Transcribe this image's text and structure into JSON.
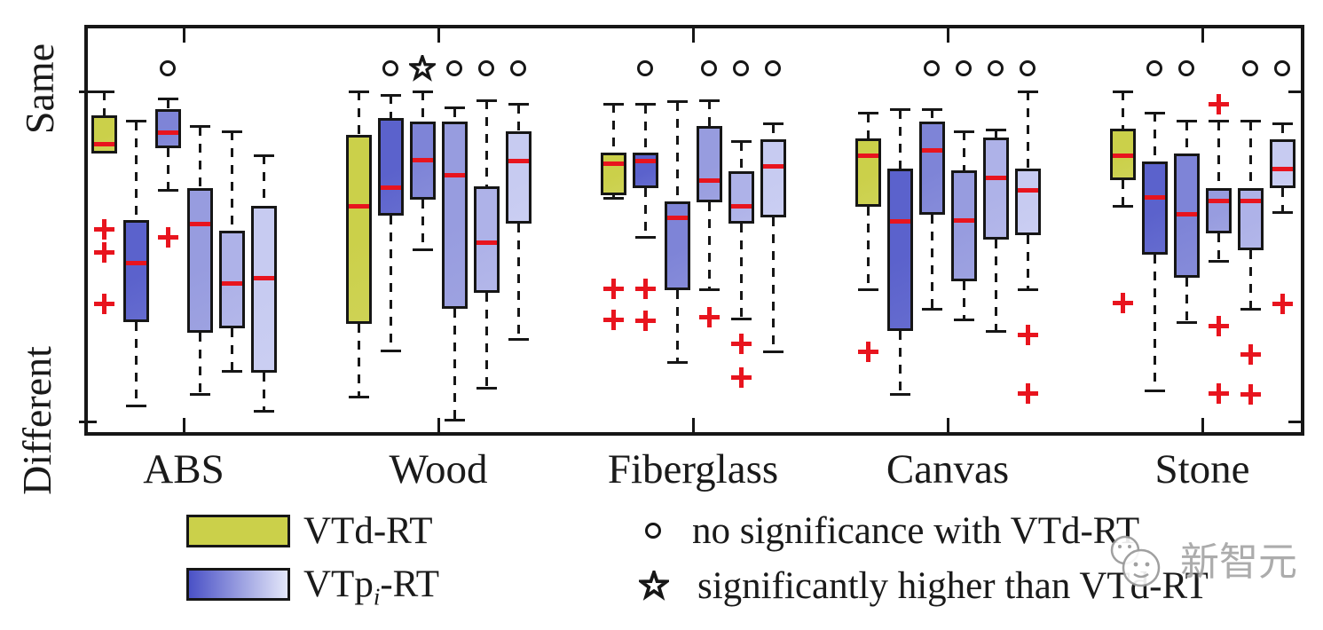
{
  "chart_data": {
    "type": "boxplot",
    "title": "",
    "axis": {
      "top_label": "Same",
      "bottom_label": "Different"
    },
    "value_scale": {
      "min": 0,
      "max": 1,
      "min_label": "Different",
      "max_label": "Same"
    },
    "categories": [
      "ABS",
      "Wood",
      "Fiberglass",
      "Canvas",
      "Stone"
    ],
    "series_legend": [
      "VTd-RT",
      "VTpi-RT"
    ],
    "groups": [
      {
        "name": "ABS",
        "boxes": [
          {
            "series": "VTd-RT",
            "q3": 0.927,
            "median": 0.839,
            "q1": 0.812,
            "whisker_high": 1.0,
            "whisker_low": 0.812,
            "outliers": [
              0.583,
              0.513,
              0.355
            ],
            "significance": null
          },
          {
            "series": "VTp-RT",
            "variant": 1,
            "q3": 0.61,
            "median": 0.481,
            "q1": 0.301,
            "whisker_high": 0.909,
            "whisker_low": 0.048,
            "outliers": [],
            "significance": null
          },
          {
            "series": "VTp-RT",
            "variant": 2,
            "q3": 0.946,
            "median": 0.874,
            "q1": 0.828,
            "whisker_high": 0.976,
            "whisker_low": 0.699,
            "outliers": [
              0.559
            ],
            "significance": "circle"
          },
          {
            "series": "VTp-RT",
            "variant": 3,
            "q3": 0.707,
            "median": 0.597,
            "q1": 0.269,
            "whisker_high": 0.893,
            "whisker_low": 0.081,
            "outliers": [],
            "significance": null
          },
          {
            "series": "VTp-RT",
            "variant": 4,
            "q3": 0.578,
            "median": 0.417,
            "q1": 0.282,
            "whisker_high": 0.879,
            "whisker_low": 0.153,
            "outliers": [],
            "significance": null
          },
          {
            "series": "VTp-RT",
            "variant": 5,
            "q3": 0.653,
            "median": 0.435,
            "q1": 0.148,
            "whisker_high": 0.806,
            "whisker_low": 0.032,
            "outliers": [],
            "significance": null
          }
        ]
      },
      {
        "name": "Wood",
        "boxes": [
          {
            "series": "VTd-RT",
            "q3": 0.868,
            "median": 0.653,
            "q1": 0.296,
            "whisker_high": 1.0,
            "whisker_low": 0.075,
            "outliers": [],
            "significance": null
          },
          {
            "series": "VTp-RT",
            "variant": 1,
            "q3": 0.919,
            "median": 0.707,
            "q1": 0.624,
            "whisker_high": 0.989,
            "whisker_low": 0.215,
            "outliers": [],
            "significance": "circle"
          },
          {
            "series": "VTp-RT",
            "variant": 2,
            "q3": 0.909,
            "median": 0.793,
            "q1": 0.672,
            "whisker_high": 1.0,
            "whisker_low": 0.519,
            "outliers": [],
            "significance": "star"
          },
          {
            "series": "VTp-RT",
            "variant": 3,
            "q3": 0.909,
            "median": 0.747,
            "q1": 0.341,
            "whisker_high": 0.949,
            "whisker_low": 0.005,
            "outliers": [],
            "significance": "circle"
          },
          {
            "series": "VTp-RT",
            "variant": 4,
            "q3": 0.712,
            "median": 0.543,
            "q1": 0.39,
            "whisker_high": 0.973,
            "whisker_low": 0.102,
            "outliers": [],
            "significance": "circle"
          },
          {
            "series": "VTp-RT",
            "variant": 5,
            "q3": 0.879,
            "median": 0.788,
            "q1": 0.599,
            "whisker_high": 0.96,
            "whisker_low": 0.25,
            "outliers": [],
            "significance": "circle"
          }
        ]
      },
      {
        "name": "Fiberglass",
        "boxes": [
          {
            "series": "VTd-RT",
            "q3": 0.815,
            "median": 0.78,
            "q1": 0.685,
            "whisker_high": 0.962,
            "whisker_low": 0.676,
            "outliers": [
              0.403,
              0.309
            ],
            "significance": null
          },
          {
            "series": "VTp-RT",
            "variant": 1,
            "q3": 0.815,
            "median": 0.788,
            "q1": 0.707,
            "whisker_high": 0.96,
            "whisker_low": 0.559,
            "outliers": [
              0.403,
              0.304
            ],
            "significance": "circle"
          },
          {
            "series": "VTp-RT",
            "variant": 2,
            "q3": 0.667,
            "median": 0.618,
            "q1": 0.398,
            "whisker_high": 0.968,
            "whisker_low": 0.18,
            "outliers": [],
            "significance": null
          },
          {
            "series": "VTp-RT",
            "variant": 3,
            "q3": 0.895,
            "median": 0.731,
            "q1": 0.664,
            "whisker_high": 0.973,
            "whisker_low": 0.398,
            "outliers": [
              0.315
            ],
            "significance": "circle"
          },
          {
            "series": "VTp-RT",
            "variant": 4,
            "q3": 0.758,
            "median": 0.651,
            "q1": 0.599,
            "whisker_high": 0.847,
            "whisker_low": 0.31,
            "outliers": [
              0.234,
              0.134
            ],
            "significance": "circle"
          },
          {
            "series": "VTp-RT",
            "variant": 5,
            "q3": 0.855,
            "median": 0.774,
            "q1": 0.618,
            "whisker_high": 0.901,
            "whisker_low": 0.21,
            "outliers": [],
            "significance": "circle"
          }
        ]
      },
      {
        "name": "Canvas",
        "boxes": [
          {
            "series": "VTd-RT",
            "q3": 0.858,
            "median": 0.804,
            "q1": 0.651,
            "whisker_high": 0.933,
            "whisker_low": 0.398,
            "outliers": [
              0.21
            ],
            "significance": null
          },
          {
            "series": "VTp-RT",
            "variant": 1,
            "q3": 0.766,
            "median": 0.605,
            "q1": 0.274,
            "whisker_high": 0.944,
            "whisker_low": 0.081,
            "outliers": [],
            "significance": null
          },
          {
            "series": "VTp-RT",
            "variant": 2,
            "q3": 0.909,
            "median": 0.82,
            "q1": 0.626,
            "whisker_high": 0.946,
            "whisker_low": 0.341,
            "outliers": [],
            "significance": "circle"
          },
          {
            "series": "VTp-RT",
            "variant": 3,
            "q3": 0.761,
            "median": 0.61,
            "q1": 0.425,
            "whisker_high": 0.879,
            "whisker_low": 0.309,
            "outliers": [],
            "significance": "circle"
          },
          {
            "series": "VTp-RT",
            "variant": 4,
            "q3": 0.86,
            "median": 0.739,
            "q1": 0.551,
            "whisker_high": 0.882,
            "whisker_low": 0.274,
            "outliers": [],
            "significance": "circle"
          },
          {
            "series": "VTp-RT",
            "variant": 5,
            "q3": 0.766,
            "median": 0.699,
            "q1": 0.565,
            "whisker_high": 1.0,
            "whisker_low": 0.398,
            "outliers": [
              0.263,
              0.086
            ],
            "significance": "circle"
          }
        ]
      },
      {
        "name": "Stone",
        "boxes": [
          {
            "series": "VTd-RT",
            "q3": 0.887,
            "median": 0.806,
            "q1": 0.731,
            "whisker_high": 1.0,
            "whisker_low": 0.651,
            "outliers": [
              0.358
            ],
            "significance": null
          },
          {
            "series": "VTp-RT",
            "variant": 1,
            "q3": 0.788,
            "median": 0.68,
            "q1": 0.505,
            "whisker_high": 0.935,
            "whisker_low": 0.094,
            "outliers": [],
            "significance": "circle"
          },
          {
            "series": "VTp-RT",
            "variant": 2,
            "q3": 0.812,
            "median": 0.629,
            "q1": 0.435,
            "whisker_high": 0.909,
            "whisker_low": 0.301,
            "outliers": [],
            "significance": "circle"
          },
          {
            "series": "VTp-RT",
            "variant": 3,
            "q3": 0.707,
            "median": 0.667,
            "q1": 0.57,
            "whisker_high": 0.909,
            "whisker_low": 0.484,
            "outliers": [
              0.96,
              0.288,
              0.086
            ],
            "significance": null
          },
          {
            "series": "VTp-RT",
            "variant": 4,
            "q3": 0.707,
            "median": 0.667,
            "q1": 0.519,
            "whisker_high": 0.909,
            "whisker_low": 0.341,
            "outliers": [
              0.202,
              0.081
            ],
            "significance": "circle"
          },
          {
            "series": "VTp-RT",
            "variant": 5,
            "q3": 0.855,
            "median": 0.766,
            "q1": 0.707,
            "whisker_high": 0.901,
            "whisker_low": 0.632,
            "outliers": [
              0.355
            ],
            "significance": "circle"
          }
        ]
      }
    ]
  },
  "legend": {
    "vtd_label": "VTd-RT",
    "vtp_label_parts": {
      "prefix": "VTp",
      "subscript": "i",
      "suffix": "-RT"
    },
    "circle_text": "no significance with VTd-RT",
    "star_text": "significantly higher than VTd-RT"
  },
  "colors": {
    "vtd": "#cbd04a",
    "vtp_shades": [
      "#5b62cc",
      "#7e84d7",
      "#979cdf",
      "#aeb2e8",
      "#c7cbf1"
    ],
    "vtp_gradient": [
      "#4a51c6",
      "#e4e7f9"
    ],
    "median": "#e8141e",
    "outlier": "#e8141e",
    "line": "#161616"
  },
  "watermark": {
    "text": "新智元"
  }
}
